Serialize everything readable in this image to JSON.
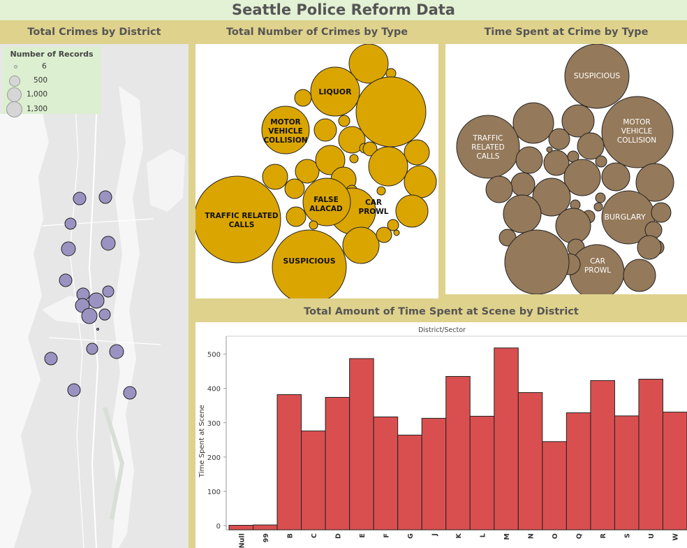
{
  "dashboard": {
    "title": "Seattle Police Reform Data"
  },
  "map": {
    "title": "Total Crimes by District",
    "legend": {
      "title": "Number of Records",
      "items": [
        "6",
        "500",
        "1,000",
        "1,300"
      ]
    },
    "marker_color": "#9a93c2"
  },
  "crimes_by_type": {
    "title": "Total Number of Crimes by Type",
    "color": "#dba500",
    "labels": [
      "LIQUOR",
      "MOTOR VEHICLE COLLISION",
      "FALSE ALACAD",
      "CAR PROWL",
      "TRAFFIC RELATED CALLS",
      "SUSPICIOUS"
    ]
  },
  "time_by_type": {
    "title": "Time Spent at Crime by Type",
    "color": "#94795a",
    "labels": [
      "SUSPICIOUS",
      "MOTOR VEHICLE COLLISION",
      "TRAFFIC RELATED CALLS",
      "BURGLARY",
      "CAR PROWL"
    ]
  },
  "time_by_district": {
    "title": "Total Amount of Time Spent at Scene by District",
    "bar_color": "#d94f4f"
  },
  "chart_data": {
    "type": "bar",
    "title": "Total Amount of Time Spent at Scene by District",
    "header": "District/Sector",
    "ylabel": "Time Spent at Scene",
    "xlabel": "",
    "categories": [
      "Null",
      "99",
      "B",
      "C",
      "D",
      "E",
      "F",
      "G",
      "J",
      "K",
      "L",
      "M",
      "N",
      "O",
      "Q",
      "R",
      "S",
      "U",
      "W"
    ],
    "values": [
      1,
      2,
      382,
      276,
      374,
      487,
      317,
      264,
      313,
      435,
      319,
      518,
      388,
      245,
      329,
      423,
      320,
      427,
      331
    ],
    "ylim": [
      0,
      540
    ],
    "yticks": [
      0,
      100,
      200,
      300,
      400,
      500
    ],
    "grid": false
  }
}
